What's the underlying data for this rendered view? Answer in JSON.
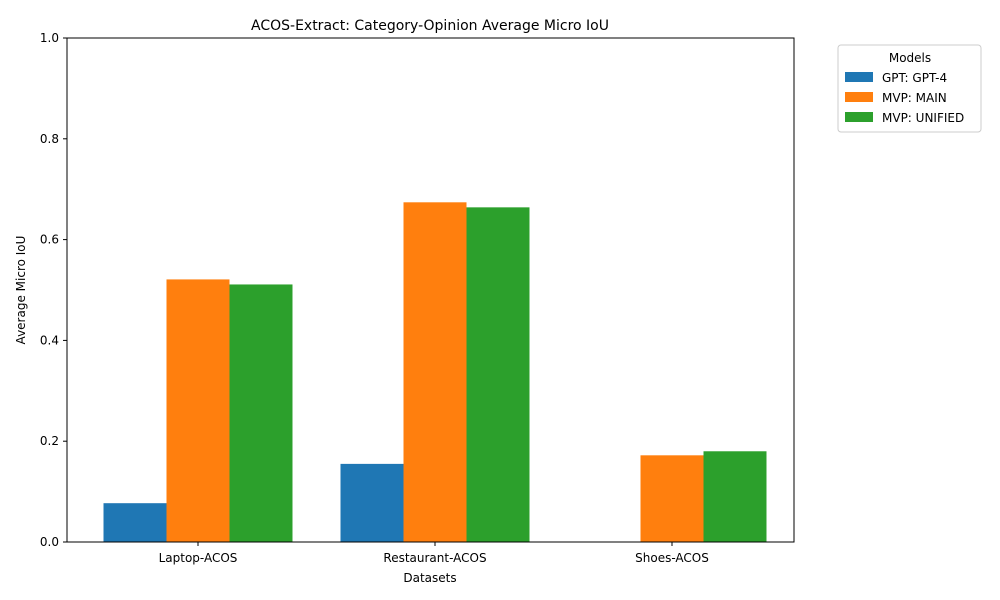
{
  "chart_data": {
    "type": "bar",
    "title": "ACOS-Extract: Category-Opinion Average Micro IoU",
    "xlabel": "Datasets",
    "ylabel": "Average Micro IoU",
    "categories": [
      "Laptop-ACOS",
      "Restaurant-ACOS",
      "Shoes-ACOS"
    ],
    "ylim": [
      0,
      1
    ],
    "yticks": [
      "0.0",
      "0.2",
      "0.4",
      "0.6",
      "0.8",
      "1.0"
    ],
    "grid": false,
    "legend": {
      "title": "Models",
      "placement": "outside-top-right"
    },
    "series": [
      {
        "name": "GPT: GPT-4",
        "color": "#1f77b4",
        "values": [
          0.077,
          0.155,
          0.0
        ]
      },
      {
        "name": "MVP: MAIN",
        "color": "#ff7f0e",
        "values": [
          0.521,
          0.674,
          0.172
        ]
      },
      {
        "name": "MVP: UNIFIED",
        "color": "#2ca02c",
        "values": [
          0.511,
          0.664,
          0.18
        ]
      }
    ]
  }
}
